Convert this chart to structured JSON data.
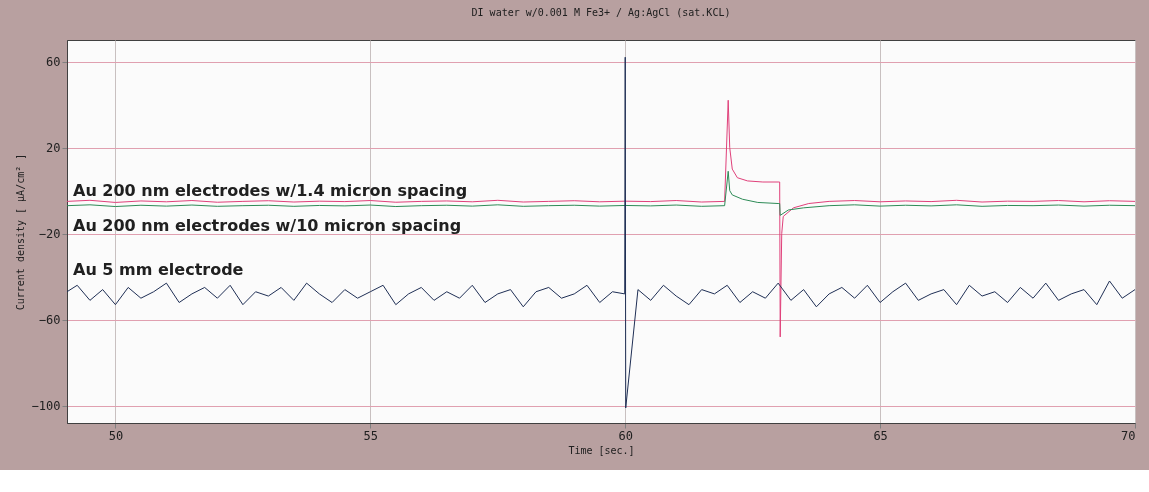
{
  "chart_data": {
    "type": "line",
    "title": "DI water w/0.001 M Fe3+ / Ag:AgCl (sat.KCL)",
    "xlabel": "Time [sec.]",
    "ylabel": "Current density [ µA/cm² ]",
    "xlim": [
      49.05,
      70
    ],
    "ylim": [
      -108,
      70
    ],
    "xticks": [
      50,
      55,
      60,
      65,
      70
    ],
    "yticks": [
      60,
      20,
      -20,
      -60,
      -100
    ],
    "grid": true,
    "marker": "none",
    "line_style": "solid",
    "series": [
      {
        "name": "Au 200 nm electrodes w/1.4 micron spacing",
        "color": "#e0407a",
        "x": [
          49.05,
          49.5,
          50,
          50.5,
          51,
          51.5,
          52,
          52.5,
          53,
          53.5,
          54,
          54.5,
          55,
          55.5,
          56,
          56.5,
          57,
          57.5,
          58,
          58.5,
          59,
          59.5,
          60,
          60.5,
          61,
          61.5,
          61.95,
          62.02,
          62.05,
          62.1,
          62.2,
          62.4,
          62.7,
          63.0,
          63.03,
          63.04,
          63.07,
          63.1,
          63.3,
          63.6,
          64,
          64.5,
          65,
          65.5,
          66,
          66.5,
          67,
          67.5,
          68,
          68.5,
          69,
          69.5,
          70
        ],
        "values": [
          -5,
          -4.5,
          -5.5,
          -4.8,
          -5.2,
          -4.6,
          -5.4,
          -5,
          -4.7,
          -5.3,
          -4.9,
          -5.1,
          -4.6,
          -5.4,
          -5,
          -4.8,
          -5.2,
          -4.5,
          -5.3,
          -5,
          -4.7,
          -5.2,
          -4.9,
          -5.1,
          -4.6,
          -5.3,
          -5,
          42,
          20,
          10,
          6,
          4.5,
          4,
          4,
          4,
          -68,
          -20,
          -12,
          -8,
          -6,
          -5,
          -4.6,
          -5.2,
          -4.8,
          -5.1,
          -4.5,
          -5.3,
          -4.9,
          -5,
          -4.6,
          -5.2,
          -4.7,
          -5
        ]
      },
      {
        "name": "Au 200 nm electrodes w/10 micron spacing",
        "color": "#2e8b57",
        "x": [
          49.05,
          49.5,
          50,
          50.5,
          51,
          51.5,
          52,
          52.5,
          53,
          53.5,
          54,
          54.5,
          55,
          55.5,
          56,
          56.5,
          57,
          57.5,
          58,
          58.5,
          59,
          59.5,
          60,
          60.5,
          61,
          61.5,
          61.95,
          62.02,
          62.05,
          62.1,
          62.3,
          62.6,
          63.0,
          63.03,
          63.04,
          63.2,
          63.5,
          64,
          64.5,
          65,
          65.5,
          66,
          66.5,
          67,
          67.5,
          68,
          68.5,
          69,
          69.5,
          70
        ],
        "values": [
          -7,
          -6.6,
          -7.4,
          -6.8,
          -7.2,
          -6.7,
          -7.3,
          -7,
          -6.8,
          -7.3,
          -6.9,
          -7.1,
          -6.7,
          -7.4,
          -7,
          -6.8,
          -7.2,
          -6.6,
          -7.3,
          -7,
          -6.8,
          -7.2,
          -6.9,
          -7.1,
          -6.7,
          -7.3,
          -7,
          9,
          0,
          -2,
          -4,
          -5.5,
          -6,
          -6,
          -11.5,
          -9,
          -8,
          -7,
          -6.6,
          -7.2,
          -6.8,
          -7.1,
          -6.6,
          -7.3,
          -6.9,
          -7,
          -6.7,
          -7.2,
          -6.8,
          -7
        ]
      },
      {
        "name": "Au 5 mm electrode",
        "color": "#1f2f55",
        "x": [
          49.05,
          49.25,
          49.5,
          49.75,
          50,
          50.25,
          50.5,
          50.75,
          51,
          51.25,
          51.5,
          51.75,
          52,
          52.25,
          52.5,
          52.75,
          53,
          53.25,
          53.5,
          53.75,
          54,
          54.25,
          54.5,
          54.75,
          55,
          55.25,
          55.5,
          55.75,
          56,
          56.25,
          56.5,
          56.75,
          57,
          57.25,
          57.5,
          57.75,
          58,
          58.25,
          58.5,
          58.75,
          59,
          59.25,
          59.5,
          59.75,
          59.99,
          60,
          60.01,
          60.25,
          60.5,
          60.75,
          61,
          61.25,
          61.5,
          61.75,
          62,
          62.25,
          62.5,
          62.75,
          63,
          63.25,
          63.5,
          63.75,
          64,
          64.25,
          64.5,
          64.75,
          65,
          65.25,
          65.5,
          65.75,
          66,
          66.25,
          66.5,
          66.75,
          67,
          67.25,
          67.5,
          67.75,
          68,
          68.25,
          68.5,
          68.75,
          69,
          69.25,
          69.5,
          69.75,
          70
        ],
        "values": [
          -47,
          -44,
          -51,
          -46,
          -53,
          -45,
          -50,
          -47,
          -43,
          -52,
          -48,
          -45,
          -50,
          -44,
          -53,
          -47,
          -49,
          -45,
          -51,
          -43,
          -48,
          -52,
          -46,
          -50,
          -47,
          -44,
          -53,
          -48,
          -45,
          -51,
          -47,
          -50,
          -44,
          -52,
          -48,
          -46,
          -54,
          -47,
          -45,
          -50,
          -48,
          -44,
          -52,
          -47,
          -48,
          62,
          -101,
          -46,
          -51,
          -44,
          -49,
          -53,
          -46,
          -48,
          -44,
          -52,
          -47,
          -50,
          -43,
          -51,
          -46,
          -54,
          -48,
          -45,
          -50,
          -44,
          -52,
          -47,
          -43,
          -51,
          -48,
          -46,
          -53,
          -44,
          -49,
          -47,
          -52,
          -45,
          -50,
          -43,
          -51,
          -48,
          -46,
          -53,
          -42,
          -50,
          -46
        ]
      }
    ]
  }
}
